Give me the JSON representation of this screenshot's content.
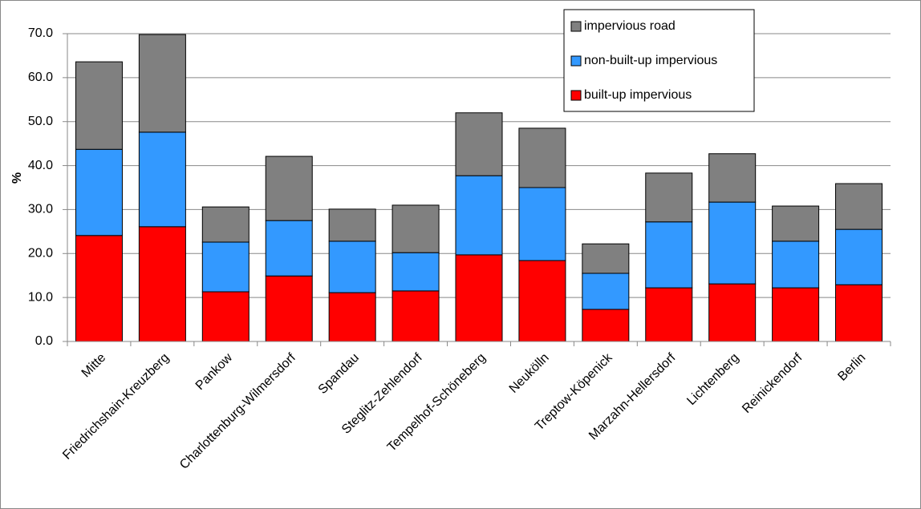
{
  "chart_data": {
    "type": "stacked-bar",
    "y_label": "%",
    "categories": [
      "Mitte",
      "Friedrichshain-Kreuzberg",
      "Pankow",
      "Charlottenburg-Wilmersdorf",
      "Spandau",
      "Steglitz-Zehlendorf",
      "Tempelhof-Schöneberg",
      "Neukölln",
      "Treptow-Köpenick",
      "Marzahn-Hellersdorf",
      "Lichtenberg",
      "Reinickendorf",
      "Berlin"
    ],
    "series": [
      {
        "name": "built-up impervious",
        "color": "#ff0000",
        "values": [
          24.1,
          26.1,
          11.3,
          14.9,
          11.1,
          11.5,
          19.7,
          18.4,
          7.3,
          12.2,
          13.1,
          12.2,
          12.9
        ]
      },
      {
        "name": "non-built-up impervious",
        "color": "#3399ff",
        "values": [
          19.6,
          21.5,
          11.3,
          12.6,
          11.7,
          8.7,
          18.0,
          16.6,
          8.2,
          15.0,
          18.6,
          10.6,
          12.6
        ]
      },
      {
        "name": "impervious road",
        "color": "#808080",
        "values": [
          19.9,
          22.2,
          8.0,
          14.6,
          7.3,
          10.8,
          14.3,
          13.5,
          6.7,
          11.1,
          11.0,
          8.0,
          10.4
        ]
      }
    ],
    "ylim": [
      0,
      70
    ],
    "yticks": [
      {
        "value": 0,
        "label": "0.0"
      },
      {
        "value": 10,
        "label": "10.0"
      },
      {
        "value": 20,
        "label": "20.0"
      },
      {
        "value": 30,
        "label": "30.0"
      },
      {
        "value": 40,
        "label": "40.0"
      },
      {
        "value": 50,
        "label": "50.0"
      },
      {
        "value": 60,
        "label": "60.0"
      },
      {
        "value": 70,
        "label": "70.0"
      }
    ],
    "grid": true,
    "legend": "top-right"
  }
}
